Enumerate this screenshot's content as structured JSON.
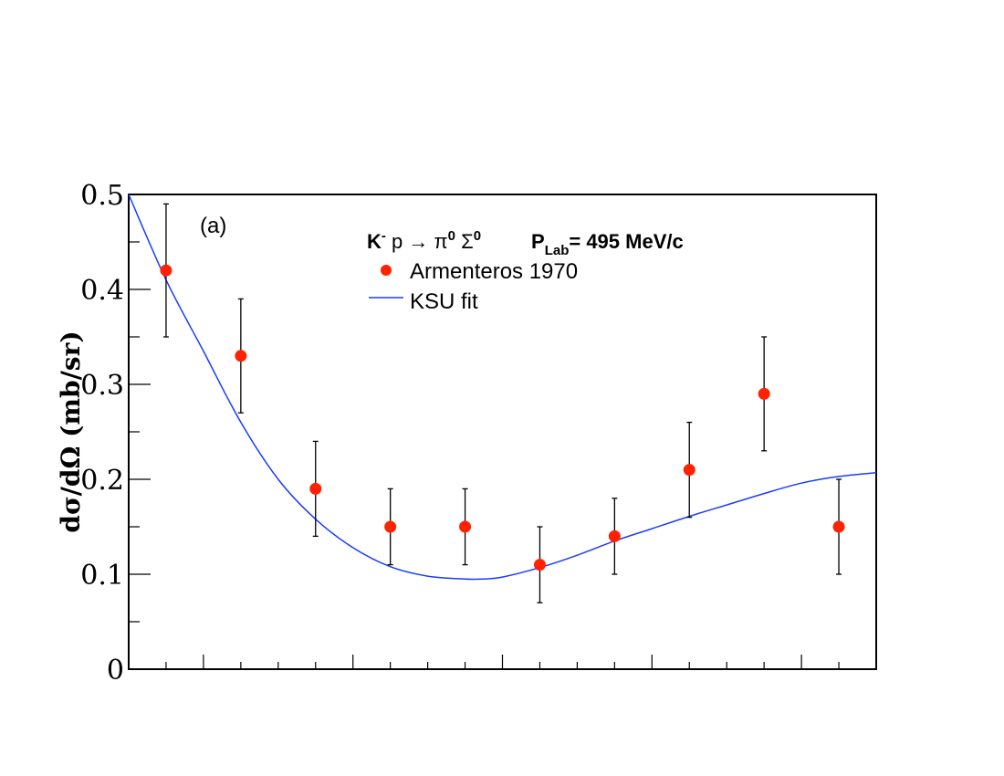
{
  "chart_data": {
    "type": "scatter",
    "title": "",
    "reaction_parts": {
      "k": "K",
      "k_sup": "-",
      "p": " p → π",
      "pi_sup": "0",
      "sigma": " Σ",
      "sigma_sup": "0",
      "plab": "P",
      "plab_sub": "Lab",
      "plab_value": "= 495 MeV/c"
    },
    "panel_label": "(a)",
    "ylabel": "dσ/dΩ (mb/sr)",
    "xlabel": "",
    "xlim": [
      -1,
      1
    ],
    "ylim": [
      0,
      0.5
    ],
    "y_ticks": [
      {
        "value": 0,
        "label": "0"
      },
      {
        "value": 0.1,
        "label": "0.1"
      },
      {
        "value": 0.2,
        "label": "0.2"
      },
      {
        "value": 0.3,
        "label": "0.3"
      },
      {
        "value": 0.4,
        "label": "0.4"
      },
      {
        "value": 0.5,
        "label": "0.5"
      }
    ],
    "grid": false,
    "legend": {
      "placement": "top-center",
      "entries": [
        {
          "label": "Armenteros 1970",
          "kind": "marker",
          "color": "#ff2200"
        },
        {
          "label": "KSU fit",
          "kind": "line",
          "color": "#1a3cff"
        }
      ]
    },
    "series": [
      {
        "name": "Armenteros 1970",
        "color": "#ff2200",
        "x": [
          -0.9,
          -0.7,
          -0.5,
          -0.3,
          -0.1,
          0.1,
          0.3,
          0.5,
          0.7,
          0.9
        ],
        "y": [
          0.42,
          0.33,
          0.19,
          0.15,
          0.15,
          0.11,
          0.14,
          0.21,
          0.29,
          0.15
        ],
        "yerr": [
          0.07,
          0.06,
          0.05,
          0.04,
          0.04,
          0.04,
          0.04,
          0.05,
          0.06,
          0.05
        ]
      },
      {
        "name": "KSU fit",
        "color": "#1a3cff",
        "x": [
          -1.0,
          -0.9,
          -0.8,
          -0.7,
          -0.6,
          -0.5,
          -0.4,
          -0.3,
          -0.2,
          -0.1,
          -0.05,
          0.0,
          0.1,
          0.2,
          0.3,
          0.4,
          0.5,
          0.6,
          0.7,
          0.8,
          0.9,
          1.0
        ],
        "y": [
          0.5,
          0.41,
          0.335,
          0.26,
          0.2,
          0.158,
          0.128,
          0.108,
          0.098,
          0.095,
          0.095,
          0.097,
          0.107,
          0.12,
          0.135,
          0.148,
          0.161,
          0.173,
          0.185,
          0.196,
          0.203,
          0.207
        ]
      }
    ]
  }
}
